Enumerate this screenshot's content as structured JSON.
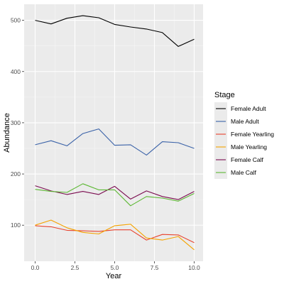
{
  "chart_data": {
    "type": "line",
    "title": "",
    "xlabel": "Year",
    "ylabel": "Abundance",
    "xlim": [
      0,
      10
    ],
    "ylim": [
      100,
      500
    ],
    "x_ticks": [
      0.0,
      2.5,
      5.0,
      7.5,
      10.0
    ],
    "x_tick_labels": [
      "0.0",
      "2.5",
      "5.0",
      "7.5",
      "10.0"
    ],
    "y_ticks": [
      100,
      200,
      300,
      400,
      500
    ],
    "y_tick_labels": [
      "100",
      "200",
      "300",
      "400",
      "500"
    ],
    "grid": true,
    "legend": {
      "title": "Stage",
      "position": "right"
    },
    "x": [
      0,
      1,
      2,
      3,
      4,
      5,
      6,
      7,
      8,
      9,
      10
    ],
    "series": [
      {
        "name": "Female Adult",
        "color": "#000000",
        "values": [
          500,
          493,
          504,
          509,
          505,
          492,
          487,
          483,
          476,
          449,
          463
        ]
      },
      {
        "name": "Male Adult",
        "color": "#3a62a8",
        "values": [
          257,
          265,
          255,
          279,
          288,
          256,
          257,
          237,
          263,
          261,
          250
        ]
      },
      {
        "name": "Female Yearling",
        "color": "#e8432e",
        "values": [
          99,
          97,
          90,
          89,
          88,
          91,
          91,
          71,
          82,
          81,
          66
        ]
      },
      {
        "name": "Male Yearling",
        "color": "#f5a300",
        "values": [
          100,
          110,
          95,
          86,
          83,
          99,
          102,
          75,
          71,
          78,
          52
        ]
      },
      {
        "name": "Female Calf",
        "color": "#7a0b4f",
        "values": [
          177,
          167,
          160,
          166,
          160,
          176,
          151,
          167,
          156,
          150,
          166
        ]
      },
      {
        "name": "Male Calf",
        "color": "#5cb833",
        "values": [
          170,
          166,
          164,
          181,
          169,
          169,
          138,
          156,
          153,
          147,
          162
        ]
      }
    ]
  }
}
